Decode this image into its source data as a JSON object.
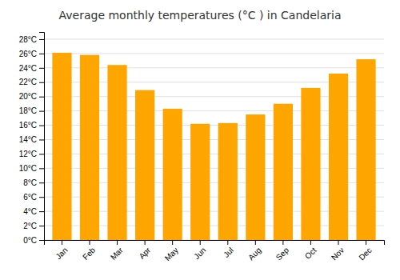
{
  "chart_data": {
    "type": "bar",
    "title": "Average monthly temperatures (°C ) in Candelaria",
    "categories": [
      "Jan",
      "Feb",
      "Mar",
      "Apr",
      "May",
      "Jun",
      "Jul",
      "Aug",
      "Sep",
      "Oct",
      "Nov",
      "Dec"
    ],
    "values": [
      26.1,
      25.8,
      24.4,
      20.9,
      18.3,
      16.2,
      16.3,
      17.5,
      19.0,
      21.2,
      23.2,
      25.2
    ],
    "color": "#FFA500",
    "ylim": [
      0,
      29
    ],
    "yticks": [
      {
        "value": 0,
        "label": "0°C"
      },
      {
        "value": 2,
        "label": "2°C"
      },
      {
        "value": 4,
        "label": "4°C"
      },
      {
        "value": 6,
        "label": "6°C"
      },
      {
        "value": 8,
        "label": "8°C"
      },
      {
        "value": 10,
        "label": "10°C"
      },
      {
        "value": 12,
        "label": "12°C"
      },
      {
        "value": 14,
        "label": "14°C"
      },
      {
        "value": 16,
        "label": "16°C"
      },
      {
        "value": 18,
        "label": "18°C"
      },
      {
        "value": 20,
        "label": "20°C"
      },
      {
        "value": 22,
        "label": "22°C"
      },
      {
        "value": 24,
        "label": "24°C"
      },
      {
        "value": 26,
        "label": "26°C"
      },
      {
        "value": 28,
        "label": "28°C"
      }
    ],
    "grid": true
  }
}
